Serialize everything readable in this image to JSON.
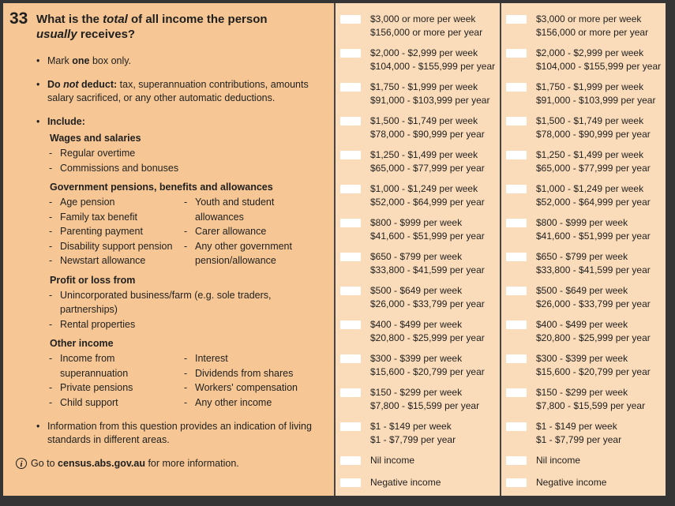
{
  "colors": {
    "left_panel_bg": "#f6c795",
    "options_bg": "#fbdcba",
    "divider": "#454545",
    "frame": "#353535",
    "text": "#1f1f1f",
    "checkbox_fill": "#ffffff"
  },
  "question": {
    "number": "33",
    "bullet_glyph": "•",
    "dash_glyph": "-",
    "title_segments": [
      {
        "t": "What is the ",
        "s": "b"
      },
      {
        "t": "total",
        "s": "bi"
      },
      {
        "t": " of all income the person\n",
        "s": "b"
      },
      {
        "t": "usually",
        "s": "bi"
      },
      {
        "t": " receives?",
        "s": "b"
      }
    ],
    "bullets": [
      {
        "segments": [
          {
            "t": "Mark ",
            "s": "r"
          },
          {
            "t": "one",
            "s": "b"
          },
          {
            "t": " box only.",
            "s": "r"
          }
        ]
      },
      {
        "segments": [
          {
            "t": "Do ",
            "s": "b"
          },
          {
            "t": "not",
            "s": "bi"
          },
          {
            "t": " deduct:",
            "s": "b"
          },
          {
            "t": " tax, superannuation contributions, amounts\nsalary sacrificed, or any other automatic deductions.",
            "s": "r"
          }
        ]
      },
      {
        "segments": [
          {
            "t": "Include:",
            "s": "b"
          }
        ]
      }
    ],
    "include_groups": [
      {
        "heading": "Wages and salaries",
        "columns": [
          [
            "Regular overtime",
            "Commissions and bonuses"
          ]
        ]
      },
      {
        "heading": "Government pensions, benefits and allowances",
        "columns": [
          [
            "Age pension",
            "Family tax benefit",
            "Parenting payment",
            "Disability support pension",
            "Newstart allowance"
          ],
          [
            "Youth and student\nallowances",
            "Carer allowance",
            "Any other government\npension/allowance"
          ]
        ]
      },
      {
        "heading": "Profit or loss from",
        "columns": [
          [
            "Unincorporated business/farm (e.g. sole traders,\npartnerships)",
            "Rental properties"
          ]
        ]
      },
      {
        "heading": "Other income",
        "columns": [
          [
            "Income from\nsuperannuation",
            "Private pensions",
            "Child support"
          ],
          [
            "Interest",
            "Dividends from shares",
            "Workers' compensation",
            "Any other income"
          ]
        ]
      }
    ],
    "closing_bullet": {
      "segments": [
        {
          "t": "Information from this question provides an indication of living\nstandards in different areas.",
          "s": "r"
        }
      ]
    },
    "footer": {
      "icon_glyph": "i",
      "segments": [
        {
          "t": "Go to ",
          "s": "r"
        },
        {
          "t": "census.abs.gov.au",
          "s": "b"
        },
        {
          "t": " for more information.",
          "s": "r"
        }
      ]
    }
  },
  "income_options": {
    "options": [
      {
        "week": "$3,000 or more per week",
        "year": "$156,000 or more per year"
      },
      {
        "week": "$2,000 - $2,999 per week",
        "year": "$104,000 - $155,999 per year"
      },
      {
        "week": "$1,750 - $1,999 per week",
        "year": "$91,000 - $103,999 per year"
      },
      {
        "week": "$1,500 - $1,749 per week",
        "year": "$78,000 - $90,999 per year"
      },
      {
        "week": "$1,250 - $1,499 per week",
        "year": "$65,000 - $77,999 per year"
      },
      {
        "week": "$1,000 - $1,249 per week",
        "year": "$52,000 - $64,999 per year"
      },
      {
        "week": "$800 - $999 per week",
        "year": "$41,600 - $51,999 per year"
      },
      {
        "week": "$650 - $799 per week",
        "year": "$33,800 - $41,599 per year"
      },
      {
        "week": "$500 - $649 per week",
        "year": "$26,000 - $33,799 per year"
      },
      {
        "week": "$400 - $499 per week",
        "year": "$20,800 - $25,999 per year"
      },
      {
        "week": "$300 - $399 per week",
        "year": "$15,600 - $20,799 per year"
      },
      {
        "week": "$150 - $299 per week",
        "year": "$7,800 - $15,599 per year"
      },
      {
        "week": "$1 - $149 per week",
        "year": "$1 - $7,799 per year"
      },
      {
        "label": "Nil income"
      },
      {
        "label": "Negative income"
      }
    ]
  }
}
